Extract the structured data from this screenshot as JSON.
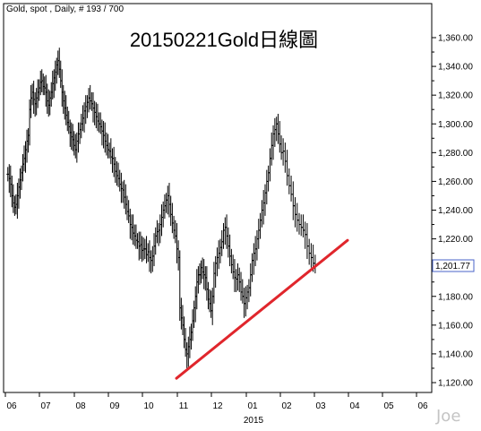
{
  "header": {
    "info": "Gold, spot , Daily, # 193 / 700"
  },
  "title": "20150221Gold日線圖",
  "watermark": "Joe",
  "colors": {
    "bars": "#000000",
    "trendline": "#e0262c",
    "price_box_border": "#4a63c8",
    "price_box_text": "#1c3aa8"
  },
  "chart_data": {
    "type": "ohlc",
    "title": "20150221Gold日線圖",
    "x_ticks": [
      "06",
      "07",
      "08",
      "09",
      "10",
      "11",
      "12",
      "01",
      "02",
      "03",
      "04",
      "05",
      "06"
    ],
    "x_sub_label": "2015",
    "y_ticks": [
      "1,120.00",
      "1,140.00",
      "1,160.00",
      "1,180.00",
      "1,200.00",
      "1,220.00",
      "1,240.00",
      "1,260.00",
      "1,280.00",
      "1,300.00",
      "1,320.00",
      "1,340.00",
      "1,360.00"
    ],
    "ylim": [
      1115,
      1370
    ],
    "last_price_label": "1,201.77",
    "months": [
      "2014-06",
      "2014-07",
      "2014-08",
      "2014-09",
      "2014-10",
      "2014-11",
      "2014-12",
      "2015-01",
      "2015-02",
      "2015-03",
      "2015-04",
      "2015-05",
      "2015-06"
    ],
    "series": [
      {
        "values_by_month": [
          [
            1265,
            1262,
            1258,
            1250,
            1245,
            1242,
            1244,
            1250,
            1256,
            1261,
            1266,
            1272,
            1276,
            1282,
            1288,
            1292,
            1310,
            1318,
            1322,
            1317,
            1314,
            1318,
            1322,
            1325,
            1329
          ],
          [
            1330,
            1326,
            1325,
            1322,
            1316,
            1313,
            1318,
            1322,
            1328,
            1332,
            1336,
            1341,
            1344,
            1338,
            1330,
            1322,
            1316,
            1311,
            1306,
            1301,
            1298,
            1294,
            1291,
            1289,
            1285,
            1282
          ],
          [
            1288,
            1293,
            1296,
            1300,
            1304,
            1309,
            1312,
            1315,
            1318,
            1316,
            1314,
            1311,
            1308,
            1305,
            1302,
            1300,
            1298,
            1295,
            1292,
            1288,
            1285,
            1282,
            1281
          ],
          [
            1277,
            1276,
            1272,
            1267,
            1264,
            1262,
            1258,
            1255,
            1254,
            1249,
            1244,
            1239,
            1236,
            1230,
            1228,
            1224,
            1222,
            1219,
            1218,
            1215,
            1216,
            1212,
            1213
          ],
          [
            1213,
            1209,
            1211,
            1207,
            1205,
            1208,
            1215,
            1222,
            1225,
            1226,
            1230,
            1235,
            1240,
            1243,
            1247,
            1250,
            1244,
            1237,
            1231,
            1226,
            1222,
            1213,
            1207
          ],
          [
            1172,
            1165,
            1160,
            1150,
            1143,
            1140,
            1145,
            1150,
            1155,
            1163,
            1172,
            1180,
            1190,
            1195,
            1195,
            1200,
            1197,
            1195,
            1193,
            1185,
            1178,
            1175,
            1170,
            1180
          ],
          [
            1196,
            1203,
            1207,
            1210,
            1214,
            1218,
            1226,
            1228,
            1222,
            1215,
            1208,
            1202,
            1197,
            1193,
            1192,
            1195,
            1190,
            1183,
            1180,
            1175,
            1179,
            1183
          ],
          [
            1186,
            1195,
            1205,
            1210,
            1213,
            1220,
            1226,
            1233,
            1240,
            1245,
            1252,
            1260,
            1266,
            1276,
            1285,
            1293,
            1296,
            1300,
            1293,
            1286,
            1280
          ],
          [
            1281,
            1274,
            1264,
            1257,
            1251,
            1243,
            1237,
            1233,
            1230,
            1228,
            1226,
            1223,
            1215,
            1210,
            1207,
            1203,
            1201
          ],
          [],
          [],
          [],
          []
        ]
      }
    ],
    "trendline": {
      "from": {
        "month": "2014-11",
        "price": 1123
      },
      "to": {
        "month": "2015-04",
        "price": 1219
      }
    }
  }
}
